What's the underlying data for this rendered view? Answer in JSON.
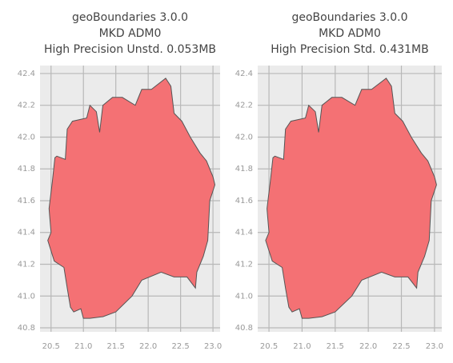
{
  "chart_data": [
    {
      "type": "polygon",
      "title": [
        "geoBoundaries 3.0.0",
        "MKD ADM0",
        "High Precision Unstd. 0.053MB"
      ],
      "color": "#f47174",
      "edgecolor": "#555555",
      "grid": true,
      "x": [
        20.47,
        20.52,
        20.56,
        20.59,
        20.72,
        20.75,
        20.83,
        21.05,
        21.1,
        21.2,
        21.25,
        21.3,
        21.45,
        21.6,
        21.8,
        21.9,
        22.05,
        22.27,
        22.35,
        22.4,
        22.52,
        22.65,
        22.8,
        22.9,
        23.0,
        23.03,
        22.95,
        22.92,
        22.85,
        22.75,
        22.73,
        22.6,
        22.4,
        22.2,
        21.9,
        21.75,
        21.5,
        21.3,
        21.1,
        21.0,
        20.96,
        20.85,
        20.8,
        20.75,
        20.7,
        20.55,
        20.45,
        20.5,
        20.48
      ],
      "y": [
        41.55,
        41.72,
        41.87,
        41.88,
        41.86,
        42.05,
        42.1,
        42.12,
        42.2,
        42.16,
        42.03,
        42.2,
        42.25,
        42.25,
        42.2,
        42.3,
        42.3,
        42.37,
        42.32,
        42.15,
        42.1,
        42.0,
        41.9,
        41.85,
        41.75,
        41.7,
        41.6,
        41.35,
        41.25,
        41.15,
        41.05,
        41.12,
        41.12,
        41.15,
        41.1,
        41.0,
        40.9,
        40.87,
        40.86,
        40.86,
        40.92,
        40.9,
        40.93,
        41.05,
        41.18,
        41.22,
        41.35,
        41.4,
        41.5
      ],
      "xlim": [
        20.33,
        23.11
      ],
      "ylim": [
        40.775,
        42.45
      ],
      "xticks": [
        20.5,
        {
          "value": 21,
          "label": "21.0"
        },
        21.5,
        {
          "value": 22,
          "label": "22.0"
        },
        22.5,
        {
          "value": 23,
          "label": "23.0"
        }
      ],
      "yticks": [
        40.8,
        {
          "value": 41,
          "label": "41.0"
        },
        41.2,
        41.4,
        41.6,
        41.8,
        {
          "value": 42,
          "label": "42.0"
        },
        42.2,
        42.4
      ]
    },
    {
      "type": "polygon",
      "title": [
        "geoBoundaries 3.0.0",
        "MKD ADM0",
        "High Precision Std. 0.431MB"
      ],
      "color": "#f47174",
      "edgecolor": "#555555",
      "grid": true,
      "x": [
        20.47,
        20.52,
        20.56,
        20.59,
        20.72,
        20.75,
        20.83,
        21.05,
        21.1,
        21.2,
        21.25,
        21.3,
        21.45,
        21.6,
        21.8,
        21.9,
        22.05,
        22.27,
        22.35,
        22.4,
        22.52,
        22.65,
        22.8,
        22.9,
        23.0,
        23.03,
        22.95,
        22.92,
        22.85,
        22.75,
        22.73,
        22.6,
        22.4,
        22.2,
        21.9,
        21.75,
        21.5,
        21.3,
        21.1,
        21.0,
        20.96,
        20.85,
        20.8,
        20.75,
        20.7,
        20.55,
        20.45,
        20.5,
        20.48
      ],
      "y": [
        41.55,
        41.72,
        41.87,
        41.88,
        41.86,
        42.05,
        42.1,
        42.12,
        42.2,
        42.16,
        42.03,
        42.2,
        42.25,
        42.25,
        42.2,
        42.3,
        42.3,
        42.37,
        42.32,
        42.15,
        42.1,
        42.0,
        41.9,
        41.85,
        41.75,
        41.7,
        41.6,
        41.35,
        41.25,
        41.15,
        41.05,
        41.12,
        41.12,
        41.15,
        41.1,
        41.0,
        40.9,
        40.87,
        40.86,
        40.86,
        40.92,
        40.9,
        40.93,
        41.05,
        41.18,
        41.22,
        41.35,
        41.4,
        41.5
      ],
      "xlim": [
        20.33,
        23.11
      ],
      "ylim": [
        40.775,
        42.45
      ],
      "xticks": [
        20.5,
        {
          "value": 21,
          "label": "21.0"
        },
        21.5,
        {
          "value": 22,
          "label": "22.0"
        },
        22.5,
        {
          "value": 23,
          "label": "23.0"
        }
      ],
      "yticks": [
        40.8,
        {
          "value": 41,
          "label": "41.0"
        },
        41.2,
        41.4,
        41.6,
        41.8,
        {
          "value": 42,
          "label": "42.0"
        },
        42.2,
        42.4
      ]
    }
  ]
}
